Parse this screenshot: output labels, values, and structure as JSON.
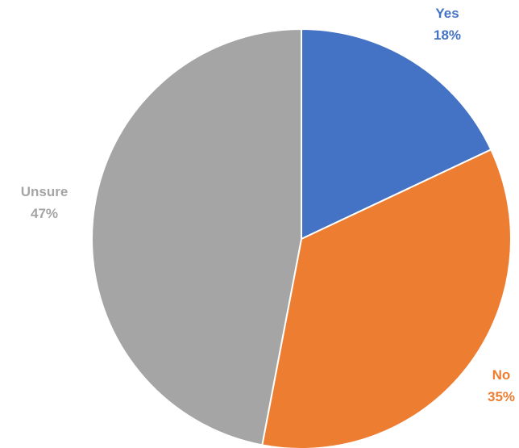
{
  "chart_data": {
    "type": "pie",
    "title": "",
    "start_angle_deg": 0,
    "direction": "clockwise",
    "slices": [
      {
        "label": "Yes",
        "value": 18,
        "percent_label": "18%",
        "color": "#4472C4"
      },
      {
        "label": "No",
        "value": 35,
        "percent_label": "35%",
        "color": "#ED7D31"
      },
      {
        "label": "Unsure",
        "value": 47,
        "percent_label": "47%",
        "color": "#A5A5A5"
      }
    ],
    "legend": "none",
    "data_labels": "outside, category name and percentage"
  }
}
